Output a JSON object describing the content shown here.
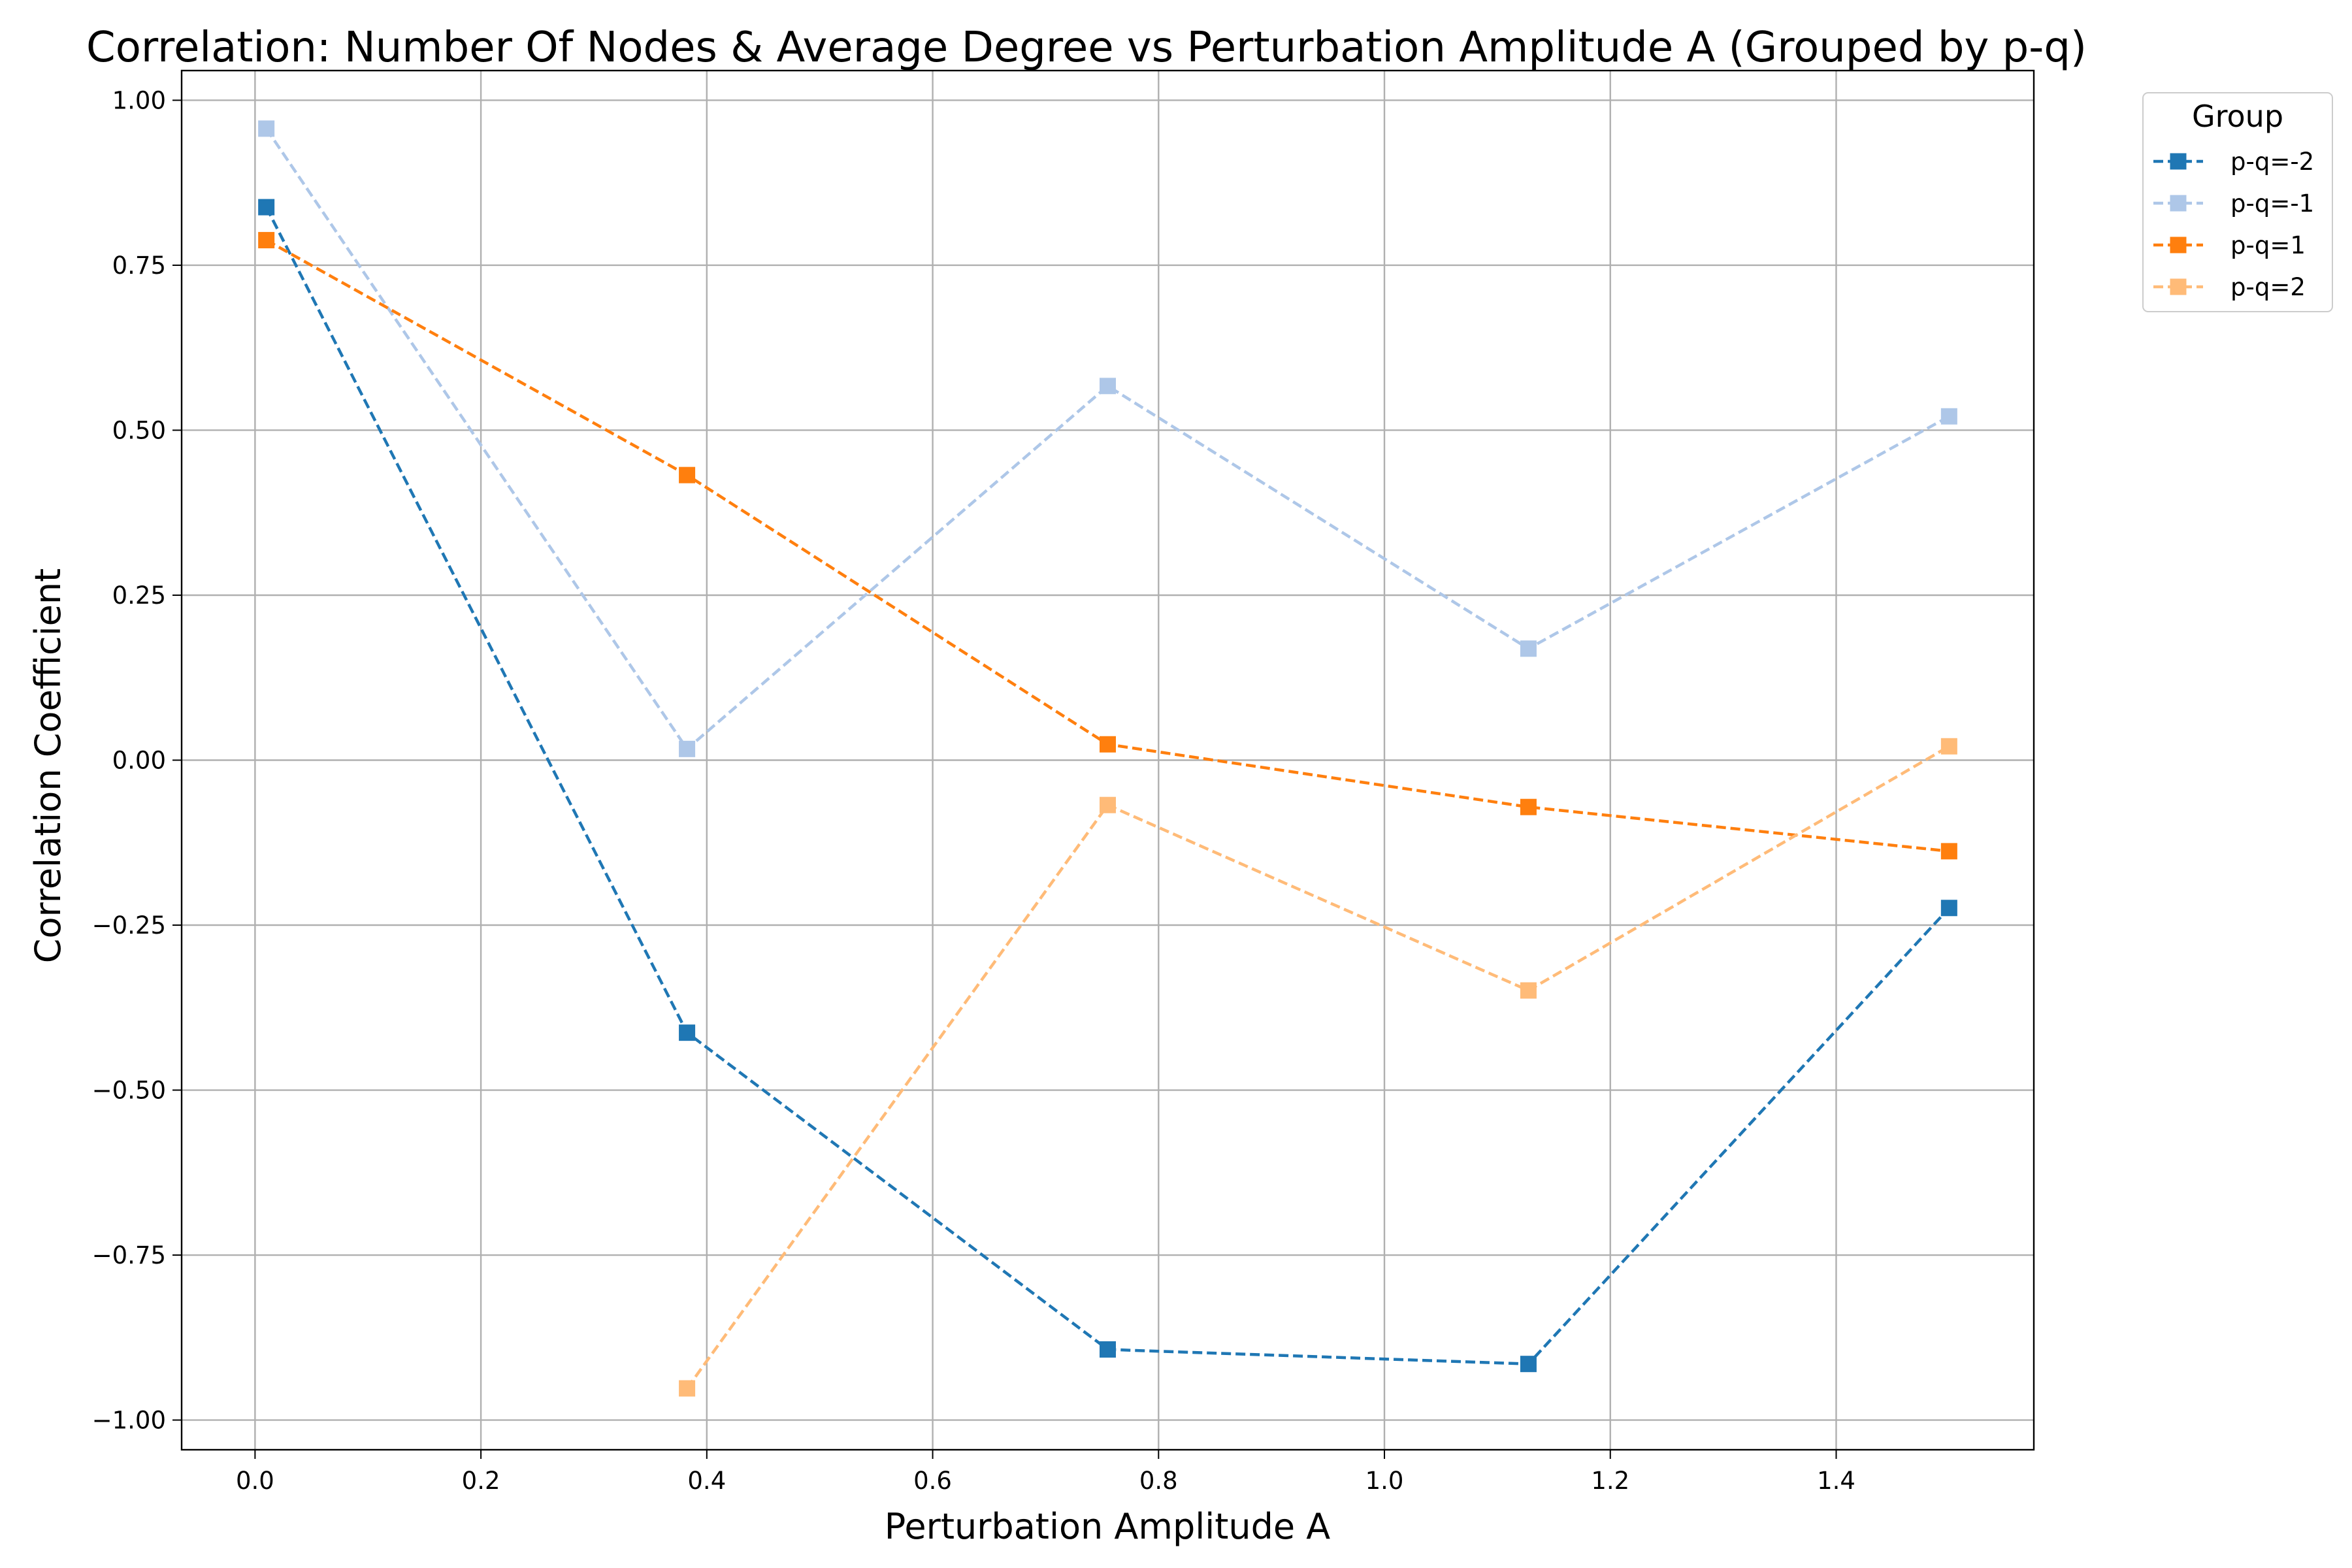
{
  "chart_data": {
    "type": "line",
    "title": "Correlation: Number Of Nodes & Average Degree vs Perturbation Amplitude A (Grouped by p-q)",
    "xlabel": "Perturbation Amplitude A",
    "ylabel": "Correlation Coefficient",
    "xlim": [
      -0.065,
      1.575
    ],
    "ylim": [
      -1.045,
      1.045
    ],
    "x_ticks": [
      0.0,
      0.2,
      0.4,
      0.6,
      0.8,
      1.0,
      1.2,
      1.4
    ],
    "x_tick_labels": [
      "0.0",
      "0.2",
      "0.4",
      "0.6",
      "0.8",
      "1.0",
      "1.2",
      "1.4"
    ],
    "y_ticks": [
      -1.0,
      -0.75,
      -0.5,
      -0.25,
      0.0,
      0.25,
      0.5,
      0.75,
      1.0
    ],
    "y_tick_labels": [
      "−1.00",
      "−0.75",
      "−0.50",
      "−0.25",
      "0.00",
      "0.25",
      "0.50",
      "0.75",
      "1.00"
    ],
    "grid": true,
    "legend_title": "Group",
    "legend_position": "outside-top-right",
    "series": [
      {
        "name": "p-q=-2",
        "color": "#1f77b4",
        "x": [
          0.01,
          0.3825,
          0.755,
          1.1275,
          1.5
        ],
        "y": [
          0.838,
          -0.413,
          -0.893,
          -0.915,
          -0.224
        ]
      },
      {
        "name": "p-q=-1",
        "color": "#aec7e8",
        "x": [
          0.01,
          0.3825,
          0.755,
          1.1275,
          1.5
        ],
        "y": [
          0.957,
          0.017,
          0.567,
          0.169,
          0.521
        ]
      },
      {
        "name": "p-q=1",
        "color": "#ff7f0e",
        "x": [
          0.01,
          0.3825,
          0.755,
          1.1275,
          1.5
        ],
        "y": [
          0.788,
          0.432,
          0.024,
          -0.071,
          -0.138
        ]
      },
      {
        "name": "p-q=2",
        "color": "#ffbb78",
        "x": [
          0.3825,
          0.755,
          1.1275,
          1.5
        ],
        "y": [
          -0.952,
          -0.068,
          -0.349,
          0.021
        ]
      }
    ]
  }
}
